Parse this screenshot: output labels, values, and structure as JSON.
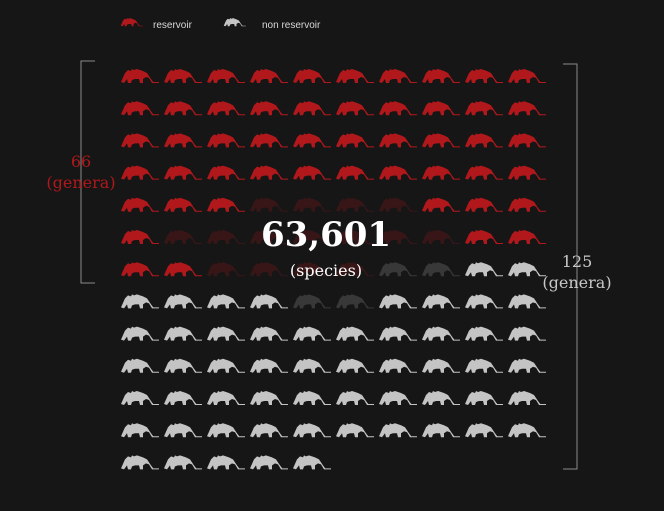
{
  "chart_data": {
    "type": "pictogram",
    "unit_icon": "animal-silhouette-icon",
    "grid_columns": 10,
    "legend": [
      {
        "label": "reservoir",
        "color": "#b0181c"
      },
      {
        "label": "non reservoir",
        "color": "#c4c4c4"
      }
    ],
    "reservoir_count": 66,
    "total_count": 125,
    "reservoir_label": {
      "value": "66",
      "unit": "(genera)"
    },
    "total_label": {
      "value": "125",
      "unit": "(genera)"
    },
    "center_value": "63,601",
    "center_unit": "(species)"
  }
}
